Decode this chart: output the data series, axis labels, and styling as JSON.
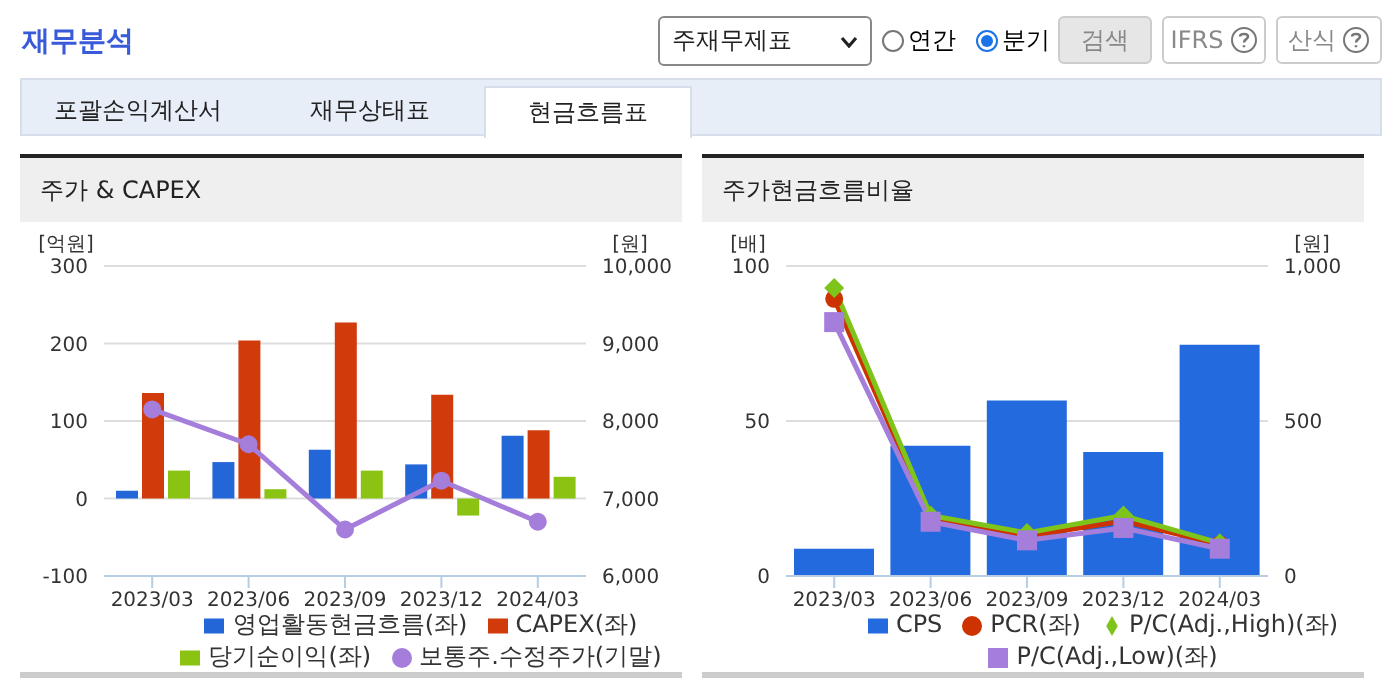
{
  "chart_data": [
    {
      "type": "other",
      "title": "재무분석",
      "annotations": [
        "주재무제표",
        "연간",
        "분기",
        "검색",
        "IFRS",
        "산식",
        "포괄손익계산서",
        "재무상태표",
        "현금흐름표"
      ]
    },
    {
      "type": "bar",
      "title": "주가 & CAPEX",
      "ylabel": "[억원]",
      "y2label": "[원]",
      "categories": [
        "2023/03",
        "2023/06",
        "2023/09",
        "2023/12",
        "2024/03"
      ],
      "series": [
        {
          "name": "영업활동현금흐름(좌)",
          "color": "#2366d8",
          "values": [
            10,
            47,
            63,
            44,
            81
          ]
        },
        {
          "name": "CAPEX(좌)",
          "color": "#d13a0a",
          "values": [
            136,
            204,
            227,
            134,
            88
          ]
        },
        {
          "name": "당기순이익(좌)",
          "color": "#8ac312",
          "values": [
            36,
            12,
            36,
            -22,
            28
          ]
        },
        {
          "name": "보통주.수정주가(기말)",
          "type": "line",
          "axis": "y2",
          "marker": "circle",
          "color": "#a57ddb",
          "values": [
            8150,
            7700,
            6600,
            7230,
            6700
          ]
        }
      ],
      "ylim": [
        -100,
        300
      ],
      "yticks": [
        -100,
        0,
        100,
        200,
        300
      ],
      "y2lim": [
        6000,
        10000
      ],
      "y2ticks": [
        {
          "value": 6000,
          "label": "6,000"
        },
        {
          "value": 7000,
          "label": "7,000"
        },
        {
          "value": 8000,
          "label": "8,000"
        },
        {
          "value": 9000,
          "label": "9,000"
        },
        {
          "value": 10000,
          "label": "10,000"
        }
      ],
      "grid": "y",
      "legend": "bottom"
    },
    {
      "type": "bar",
      "title": "주가현금흐름비율",
      "ylabel": "[배]",
      "y2label": "[원]",
      "categories": [
        "2023/03",
        "2023/06",
        "2023/09",
        "2023/12",
        "2024/03"
      ],
      "series": [
        {
          "name": "CPS",
          "color": "#226ade",
          "axis": "y2",
          "values": [
            88,
            420,
            566,
            400,
            746
          ]
        },
        {
          "name": "PCR(좌)",
          "type": "line",
          "marker": "circle",
          "color": "#cc3300",
          "values": [
            89.4,
            18.4,
            12.8,
            17.7,
            10.2
          ]
        },
        {
          "name": "P/C(Adj.,High)(좌)",
          "type": "line",
          "marker": "diamond",
          "color": "#7ec41b",
          "values": [
            92.9,
            19.5,
            13.9,
            19.5,
            10.6
          ]
        },
        {
          "name": "P/C(Adj.,Low)(좌)",
          "type": "line",
          "marker": "square",
          "color": "#a57ddb",
          "values": [
            81.9,
            17.5,
            11.5,
            15.5,
            8.8
          ]
        }
      ],
      "ylim": [
        0,
        100
      ],
      "yticks": [
        0,
        50,
        100
      ],
      "y2lim": [
        0,
        1000
      ],
      "y2ticks": [
        0,
        500,
        {
          "value": 1000,
          "label": "1,000"
        }
      ],
      "grid": "y",
      "legend": "bottom"
    }
  ]
}
